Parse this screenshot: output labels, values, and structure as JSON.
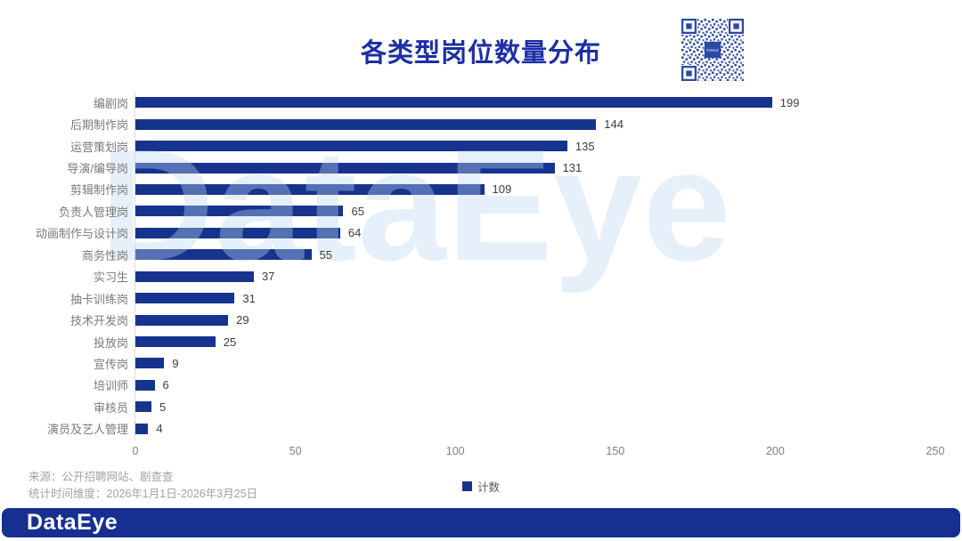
{
  "header": {
    "title": "各类型岗位数量分布"
  },
  "chart_data": {
    "type": "bar",
    "orientation": "horizontal",
    "title": "各类型岗位数量分布",
    "categories": [
      "编剧岗",
      "后期制作岗",
      "运营策划岗",
      "导演/编导岗",
      "剪辑制作岗",
      "负责人管理岗",
      "动画制作与设计岗",
      "商务性岗",
      "实习生",
      "抽卡训练岗",
      "技术开发岗",
      "投放岗",
      "宣传岗",
      "培训师",
      "审核员",
      "演员及艺人管理"
    ],
    "values": [
      199,
      144,
      135,
      131,
      109,
      65,
      64,
      55,
      37,
      31,
      29,
      25,
      9,
      6,
      5,
      4
    ],
    "xlabel": "",
    "ylabel": "",
    "xlim": [
      0,
      250
    ],
    "x_ticks": [
      0,
      50,
      100,
      150,
      200,
      250
    ],
    "grid": false,
    "legend": [
      "计数"
    ],
    "legend_position": "bottom",
    "bar_color": "#16338e"
  },
  "legend": {
    "label": "计数",
    "swatch_color": "#16338e"
  },
  "footer": {
    "source_line": "来源：公开招聘网站、剧查查",
    "period_line": "统计时间维度：2026年1月1日-2026年3月25日"
  },
  "branding": {
    "watermark_text": "DataEye",
    "logo_text": "DataEye",
    "qr_center_text": "DataEye",
    "bar_background": "#172f90",
    "title_color": "#1d2ea6",
    "qr_color": "#2b4aa5",
    "watermark_color": "#bdd8f2"
  }
}
